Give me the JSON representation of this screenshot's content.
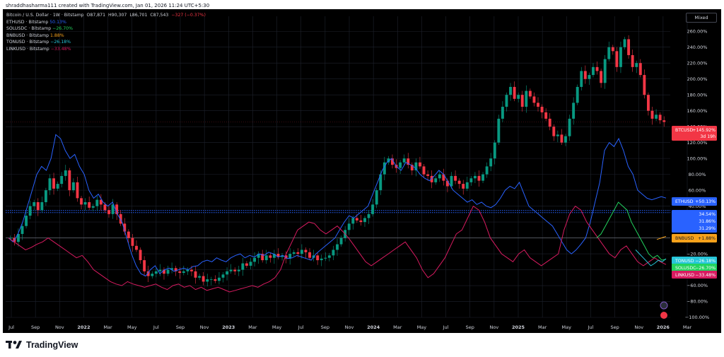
{
  "header": {
    "text": "shraddhasharma111 created with TradingView.com, Jan 01, 2026 11:24 UTC+5:30"
  },
  "mode_button": {
    "label": "Mixed"
  },
  "legend": {
    "main": {
      "title": "Bitcoin / U.S. Dollar · 1W · Bitstamp",
      "o": "O87,871",
      "h": "H90,307",
      "l": "L86,701",
      "c": "C87,543",
      "chg": "−327 (−0.37%)"
    },
    "series": [
      {
        "name": "ETHUSD · Bitstamp",
        "value": "50.13%",
        "color": "#2962ff"
      },
      {
        "name": "SOLUSDC · Bitstamp",
        "value": "−26.70%",
        "color": "#089981"
      },
      {
        "name": "BNBUSD · Bitstamp",
        "value": "1.88%",
        "color": "#f7a21b"
      },
      {
        "name": "TONUSD · Bitstamp",
        "value": "−26.18%",
        "color": "#22ab94"
      },
      {
        "name": "LINKUSD · Bitstamp",
        "value": "−33.48%",
        "color": "#d81b60"
      }
    ]
  },
  "footer": {
    "brand": "TradingView"
  },
  "colors": {
    "up": "#089981",
    "down": "#f23645",
    "eth": "#2962ff",
    "link": "#d81b60",
    "sol": "#22d35e",
    "ton": "#26c6da",
    "bnb": "#f7a21b",
    "grid": "#1e222d",
    "axis_text": "#d1d4dc"
  },
  "chart_data": {
    "type": "line",
    "y_scale": "percent",
    "ylim": [
      -100,
      270
    ],
    "y_ticks": [
      "260.00%",
      "240.00%",
      "220.00%",
      "200.00%",
      "180.00%",
      "160.00%",
      "140.00%",
      "120.00%",
      "100.00%",
      "80.00%",
      "60.00%",
      "40.00%",
      "20.00%",
      "0.00%",
      "−20.00%",
      "−40.00%",
      "−60.00%",
      "−80.00%",
      "−100.00%"
    ],
    "x_ticks": [
      "Jul",
      "Sep",
      "Nov",
      "2022",
      "Mar",
      "May",
      "Jul",
      "Sep",
      "Nov",
      "2023",
      "Mar",
      "May",
      "Jul",
      "Sep",
      "Nov",
      "2024",
      "Mar",
      "May",
      "Jul",
      "Sep",
      "Nov",
      "2025",
      "Mar",
      "May",
      "Jul",
      "Sep",
      "Nov",
      "2026",
      "Mar"
    ],
    "price_labels": [
      {
        "name": "BTCUSD",
        "text": "BTCUSD",
        "value": "+145.92%",
        "extra": "3d 19h",
        "y": 145.92,
        "color": "#f23645"
      },
      {
        "name": "ETHUSD",
        "text": "ETHUSD",
        "value": "+50.13%",
        "y": 50.13,
        "color": "#2962ff"
      },
      {
        "name": "ETH-LEVEL-1",
        "text": "",
        "value": "34.54%",
        "y": 34.54,
        "color": "#2962ff"
      },
      {
        "name": "ETH-LEVEL-2",
        "text": "",
        "value": "31.86%",
        "y": 31.86,
        "color": "#2962ff"
      },
      {
        "name": "ETH-LEVEL-3",
        "text": "",
        "value": "31.29%",
        "y": 31.29,
        "color": "#2962ff"
      },
      {
        "name": "BNBUSD",
        "text": "BNBUSD",
        "value": "+1.88%",
        "y": 1.88,
        "color": "#f7a21b"
      },
      {
        "name": "TONUSD",
        "text": "TONUSD",
        "value": "−26.18%",
        "y": -26.18,
        "color": "#26c6da"
      },
      {
        "name": "SOLUSDC",
        "text": "SOLUSDC",
        "value": "−26.70%",
        "y": -26.7,
        "color": "#22d35e"
      },
      {
        "name": "LINKUSD",
        "text": "LINKUSD",
        "value": "−33.48%",
        "y": -33.48,
        "color": "#d81b60"
      }
    ],
    "btc_close_pct": [
      0,
      -5,
      5,
      15,
      28,
      40,
      45,
      35,
      45,
      60,
      75,
      62,
      68,
      78,
      85,
      60,
      70,
      50,
      42,
      45,
      38,
      40,
      48,
      42,
      35,
      30,
      42,
      30,
      18,
      8,
      0,
      -10,
      -15,
      -28,
      -42,
      -48,
      -45,
      -42,
      -40,
      -45,
      -40,
      -38,
      -42,
      -44,
      -42,
      -40,
      -42,
      -50,
      -48,
      -55,
      -52,
      -52,
      -54,
      -50,
      -46,
      -42,
      -40,
      -42,
      -40,
      -32,
      -35,
      -30,
      -25,
      -20,
      -28,
      -22,
      -25,
      -20,
      -24,
      -22,
      -26,
      -20,
      -18,
      -20,
      -15,
      -18,
      -25,
      -22,
      -28,
      -26,
      -25,
      -22,
      -15,
      -8,
      0,
      10,
      18,
      25,
      22,
      20,
      25,
      30,
      42,
      60,
      80,
      95,
      100,
      92,
      88,
      95,
      100,
      92,
      85,
      95,
      90,
      80,
      78,
      70,
      75,
      80,
      72,
      65,
      78,
      72,
      68,
      62,
      70,
      75,
      78,
      72,
      80,
      90,
      100,
      120,
      150,
      165,
      180,
      190,
      175,
      180,
      165,
      185,
      178,
      170,
      165,
      158,
      150,
      140,
      128,
      130,
      120,
      128,
      150,
      170,
      190,
      210,
      200,
      205,
      215,
      210,
      195,
      225,
      240,
      235,
      215,
      240,
      250,
      230,
      215,
      220,
      205,
      180,
      160,
      150,
      155,
      148,
      145.92
    ],
    "series": [
      {
        "name": "ETHUSD",
        "values": [
          0,
          -5,
          5,
          20,
          40,
          60,
          80,
          90,
          85,
          100,
          130,
          125,
          110,
          100,
          105,
          90,
          80,
          60,
          50,
          55,
          45,
          40,
          45,
          30,
          20,
          0,
          -20,
          -35,
          -45,
          -48,
          -40,
          -35,
          -45,
          -40,
          -38,
          -42,
          -40,
          -38,
          -40,
          -36,
          -35,
          -30,
          -28,
          -30,
          -25,
          -28,
          -30,
          -25,
          -22,
          -20,
          -25,
          -22,
          -24,
          -20,
          -22,
          -18,
          -20,
          -24,
          -22,
          -26,
          -25,
          -22,
          -24,
          -26,
          -28,
          -20,
          -15,
          -10,
          -5,
          0,
          10,
          20,
          28,
          25,
          30,
          35,
          40,
          55,
          70,
          85,
          95,
          100,
          90,
          85,
          95,
          92,
          88,
          80,
          75,
          72,
          78,
          85,
          80,
          70,
          60,
          55,
          50,
          45,
          48,
          42,
          45,
          40,
          38,
          42,
          50,
          60,
          65,
          62,
          70,
          55,
          40,
          35,
          30,
          25,
          20,
          15,
          5,
          -5,
          -15,
          -20,
          -15,
          -8,
          0,
          20,
          45,
          70,
          110,
          120,
          115,
          125,
          110,
          90,
          80,
          60,
          55,
          50,
          48,
          50,
          52,
          50.13
        ]
      },
      {
        "name": "LINKUSD",
        "values": [
          0,
          -5,
          -10,
          -15,
          -12,
          -8,
          -5,
          0,
          -5,
          -10,
          -15,
          -20,
          -25,
          -22,
          -30,
          -40,
          -45,
          -50,
          -55,
          -58,
          -60,
          -55,
          -58,
          -60,
          -62,
          -60,
          -58,
          -62,
          -65,
          -60,
          -58,
          -62,
          -60,
          -65,
          -62,
          -66,
          -64,
          -62,
          -65,
          -68,
          -66,
          -64,
          -62,
          -60,
          -62,
          -58,
          -55,
          -50,
          -40,
          -20,
          -5,
          10,
          15,
          20,
          18,
          10,
          5,
          10,
          15,
          8,
          0,
          -10,
          -20,
          -30,
          -35,
          -30,
          -25,
          -20,
          -15,
          -10,
          -5,
          -15,
          -25,
          -40,
          -50,
          -45,
          -35,
          -25,
          -10,
          5,
          10,
          25,
          40,
          35,
          20,
          0,
          -10,
          -20,
          -25,
          -30,
          -20,
          -15,
          -25,
          -30,
          -35,
          -30,
          -25,
          -20,
          10,
          30,
          40,
          35,
          20,
          10,
          0,
          -10,
          -20,
          -25,
          -15,
          -10,
          -20,
          -30,
          -35,
          -30,
          -25,
          -30,
          -33.48
        ]
      },
      {
        "name": "SOLUSDC",
        "values": [
          0,
          5,
          15,
          25,
          35,
          45,
          40,
          35,
          20,
          10,
          0,
          -10,
          -20,
          -25,
          -22,
          -28,
          -26.7
        ]
      },
      {
        "name": "TONUSD",
        "values": [
          -15,
          -20,
          -25,
          -30,
          -35,
          -32,
          -28,
          -30,
          -26.18
        ]
      },
      {
        "name": "BNBUSD",
        "values": [
          -2,
          -1,
          0,
          1,
          1.88
        ]
      }
    ]
  }
}
